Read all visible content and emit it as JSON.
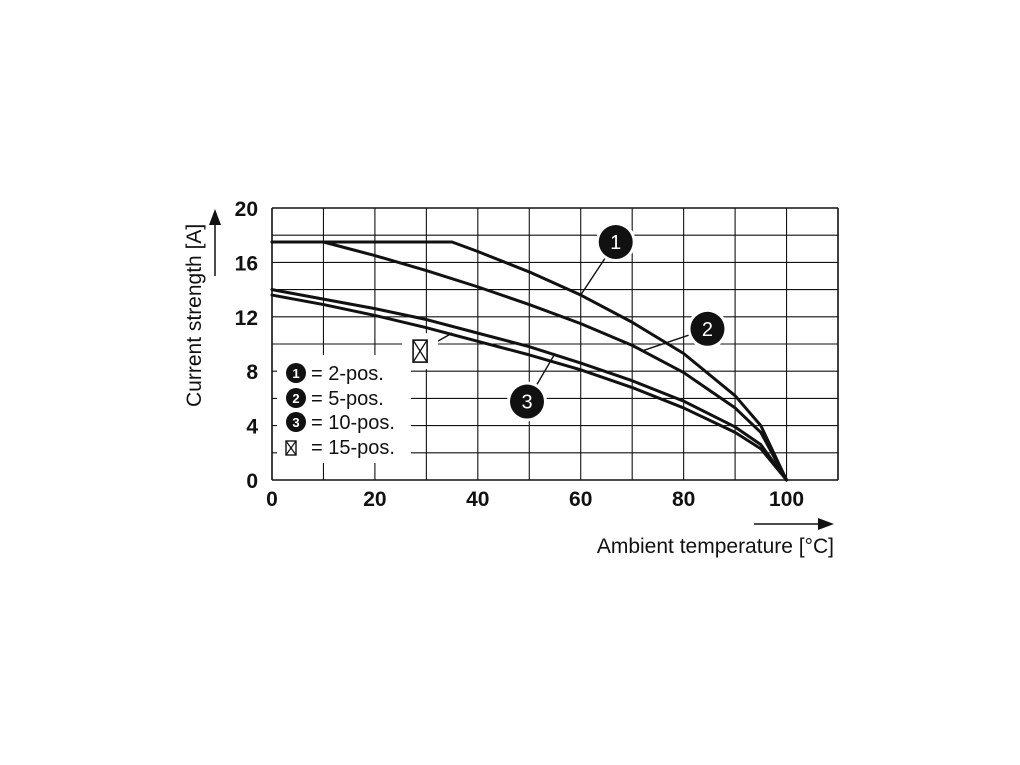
{
  "chart_data": {
    "type": "line",
    "xlabel": "Ambient temperature [°C]",
    "ylabel": "Current strength [A]",
    "xlim": [
      0,
      110
    ],
    "ylim": [
      0,
      20
    ],
    "x_ticks": [
      "0",
      "20",
      "40",
      "60",
      "80",
      "100"
    ],
    "y_ticks": [
      "0",
      "4",
      "8",
      "12",
      "16",
      "20"
    ],
    "grid": true,
    "legend_position": "left",
    "legend": [
      {
        "marker": "1",
        "label": "= 2-pos."
      },
      {
        "marker": "2",
        "label": "= 5-pos."
      },
      {
        "marker": "3",
        "label": "= 10-pos."
      },
      {
        "marker": "☒",
        "label": "= 15-pos."
      }
    ],
    "series": [
      {
        "marker": "1",
        "x": [
          0,
          10,
          20,
          30,
          35,
          40,
          50,
          60,
          70,
          80,
          90,
          95,
          100
        ],
        "y": [
          17.5,
          17.5,
          17.5,
          17.5,
          17.5,
          16.8,
          15.3,
          13.6,
          11.6,
          9.3,
          6.2,
          4.0,
          0
        ]
      },
      {
        "marker": "2",
        "x": [
          0,
          10,
          20,
          30,
          40,
          50,
          60,
          70,
          80,
          90,
          95,
          100
        ],
        "y": [
          17.5,
          17.5,
          16.5,
          15.4,
          14.2,
          12.9,
          11.5,
          9.9,
          7.9,
          5.3,
          3.5,
          0
        ]
      },
      {
        "marker": "3",
        "x": [
          0,
          10,
          20,
          30,
          40,
          50,
          60,
          70,
          80,
          90,
          95,
          100
        ],
        "y": [
          14.0,
          13.3,
          12.6,
          11.8,
          10.8,
          9.8,
          8.6,
          7.3,
          5.8,
          3.9,
          2.6,
          0
        ]
      },
      {
        "marker": "☒",
        "x": [
          0,
          10,
          20,
          30,
          40,
          50,
          60,
          70,
          80,
          90,
          95,
          100
        ],
        "y": [
          13.6,
          12.9,
          12.1,
          11.2,
          10.2,
          9.2,
          8.1,
          6.8,
          5.3,
          3.5,
          2.3,
          0
        ]
      }
    ],
    "annotations": [
      {
        "marker": "1",
        "at_x": 60,
        "at_y": 13.6
      },
      {
        "marker": "2",
        "at_x": 72,
        "at_y": 9.5
      },
      {
        "marker": "3",
        "at_x": 55,
        "at_y": 9.3
      },
      {
        "marker": "☒",
        "at_x": 35,
        "at_y": 10.8
      }
    ]
  }
}
